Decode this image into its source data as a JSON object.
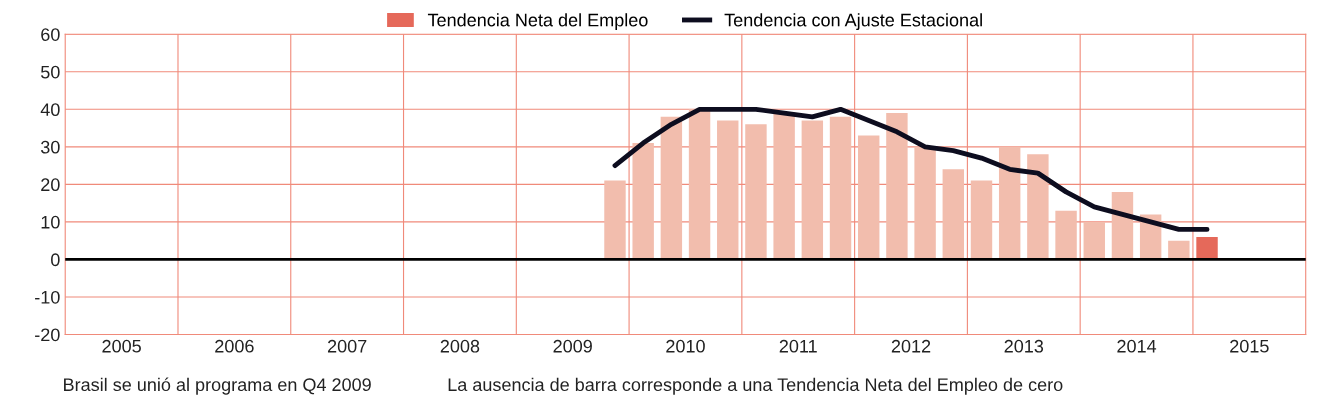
{
  "chart_data": {
    "type": "bar",
    "x": [
      2009.875,
      2010.125,
      2010.375,
      2010.625,
      2010.875,
      2011.125,
      2011.375,
      2011.625,
      2011.875,
      2012.125,
      2012.375,
      2012.625,
      2012.875,
      2013.125,
      2013.375,
      2013.625,
      2013.875,
      2014.125,
      2014.375,
      2014.625,
      2014.875,
      2015.125
    ],
    "series": [
      {
        "name": "Tendencia Neta del Empleo",
        "color": "#e5695a",
        "colors": [
          "#f2bdad",
          "#f2bdad",
          "#f2bdad",
          "#f2bdad",
          "#f2bdad",
          "#f2bdad",
          "#f2bdad",
          "#f2bdad",
          "#f2bdad",
          "#f2bdad",
          "#f2bdad",
          "#f2bdad",
          "#f2bdad",
          "#f2bdad",
          "#f2bdad",
          "#f2bdad",
          "#f2bdad",
          "#f2bdad",
          "#f2bdad",
          "#f2bdad",
          "#f2bdad",
          "#e5695a"
        ],
        "values": [
          21,
          31,
          38,
          40,
          37,
          36,
          39,
          37,
          38,
          33,
          39,
          30,
          24,
          21,
          30,
          28,
          13,
          10,
          18,
          12,
          5,
          6
        ]
      },
      {
        "name": "Tendencia con Ajuste Estacional",
        "type": "line",
        "color": "#0d0d1f",
        "values": [
          25,
          31,
          36,
          40,
          40,
          40,
          39,
          38,
          40,
          37,
          34,
          30,
          29,
          27,
          24,
          23,
          18,
          14,
          12,
          10,
          8,
          8
        ]
      }
    ],
    "xlim": [
      2005,
      2016
    ],
    "xticks": [
      {
        "value": 2005.5,
        "label": "2005"
      },
      {
        "value": 2006.5,
        "label": "2006"
      },
      {
        "value": 2007.5,
        "label": "2007"
      },
      {
        "value": 2008.5,
        "label": "2008"
      },
      {
        "value": 2009.5,
        "label": "2009"
      },
      {
        "value": 2010.5,
        "label": "2010"
      },
      {
        "value": 2011.5,
        "label": "2011"
      },
      {
        "value": 2012.5,
        "label": "2012"
      },
      {
        "value": 2013.5,
        "label": "2013"
      },
      {
        "value": 2014.5,
        "label": "2014"
      },
      {
        "value": 2015.5,
        "label": "2015"
      },
      {
        "value": 2006,
        "label": null
      },
      {
        "value": 2007,
        "label": null
      },
      {
        "value": 2008,
        "label": null
      },
      {
        "value": 2009,
        "label": null
      },
      {
        "value": 2010,
        "label": null
      },
      {
        "value": 2011,
        "label": null
      },
      {
        "value": 2012,
        "label": null
      },
      {
        "value": 2013,
        "label": null
      },
      {
        "value": 2014,
        "label": null
      },
      {
        "value": 2015,
        "label": null
      }
    ],
    "ylim": [
      -20,
      60
    ],
    "yticks": [
      -20,
      -10,
      0,
      10,
      20,
      30,
      40,
      50,
      60
    ],
    "grid": true,
    "legend": "top",
    "ref_lines": [
      {
        "axis": "y",
        "value": 0,
        "color": "#000000"
      }
    ],
    "annotations": [
      "Brasil se unió al programa en Q4 2009",
      "La ausencia de barra corresponde a una Tendencia Neta del Empleo de cero"
    ]
  }
}
